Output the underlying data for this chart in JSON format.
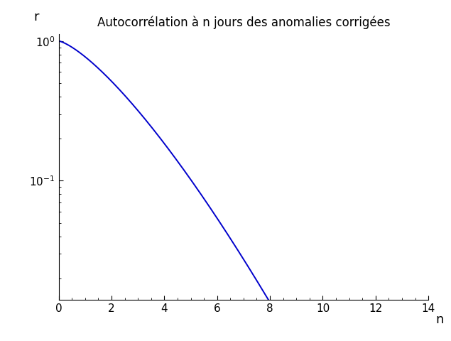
{
  "title": "Autocorrélation à n jours des anomalies corrigées",
  "xlabel": "n",
  "ylabel": "r",
  "x_min": 0,
  "x_max": 14,
  "y_min": 0.014,
  "y_max": 1.12,
  "decay_rate": 0.26,
  "exponent": 1.35,
  "line_color": "#0000cc",
  "line_width": 1.4,
  "background_color": "#ffffff",
  "x_ticks": [
    0,
    2,
    4,
    6,
    8,
    10,
    12,
    14
  ],
  "y_ticks": [
    0.1,
    1.0
  ],
  "title_fontsize": 12,
  "label_fontsize": 13,
  "tick_fontsize": 11
}
